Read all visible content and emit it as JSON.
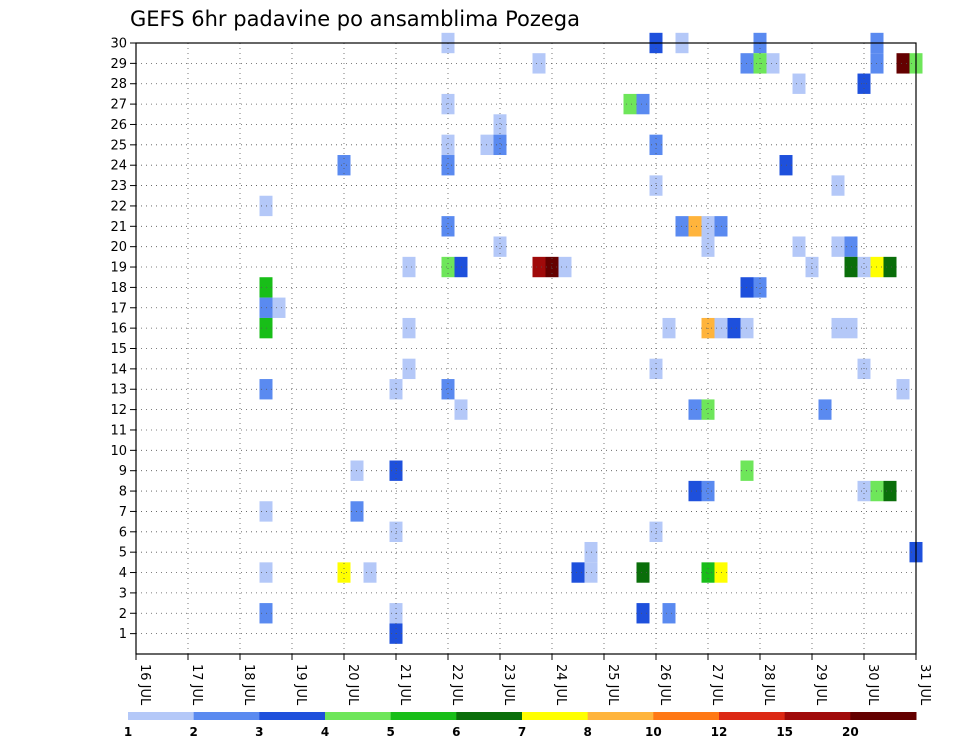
{
  "chart_data": {
    "type": "heatmap",
    "title": "GEFS 6hr padavine po ansamblima Pozega",
    "x_tick_labels": [
      "16 JUL",
      "17 JUL",
      "18 JUL",
      "19 JUL",
      "20 JUL",
      "21 JUL",
      "22 JUL",
      "23 JUL",
      "24 JUL",
      "25 JUL",
      "26 JUL",
      "27 JUL",
      "28 JUL",
      "29 JUL",
      "30 JUL",
      "31 JUL"
    ],
    "x_range_days": [
      16,
      31
    ],
    "y_tick_labels": [
      "1",
      "2",
      "3",
      "4",
      "5",
      "6",
      "7",
      "8",
      "9",
      "10",
      "11",
      "12",
      "13",
      "14",
      "15",
      "16",
      "17",
      "18",
      "19",
      "20",
      "21",
      "22",
      "23",
      "24",
      "25",
      "26",
      "27",
      "28",
      "29",
      "30"
    ],
    "y_range": [
      0,
      30
    ],
    "grid": true,
    "legend_placement": "bottom",
    "legend": {
      "colors": [
        "#b4c8f8",
        "#5a8af0",
        "#1e50dc",
        "#6ee65a",
        "#18be18",
        "#0a6e0a",
        "#ffff00",
        "#ffb43c",
        "#ff7814",
        "#dc2814",
        "#a00a0a",
        "#640000"
      ],
      "labels": [
        "1",
        "2",
        "3",
        "4",
        "5",
        "6",
        "7",
        "8",
        "10",
        "12",
        "15",
        "20"
      ]
    },
    "cells": [
      {
        "m": 30,
        "t": 22.0,
        "c": 1
      },
      {
        "m": 30,
        "t": 26.0,
        "c": 3
      },
      {
        "m": 30,
        "t": 26.5,
        "c": 1
      },
      {
        "m": 30,
        "t": 28.0,
        "c": 2
      },
      {
        "m": 30,
        "t": 30.25,
        "c": 2
      },
      {
        "m": 29,
        "t": 23.75,
        "c": 1
      },
      {
        "m": 29,
        "t": 27.75,
        "c": 2
      },
      {
        "m": 29,
        "t": 28.0,
        "c": 4
      },
      {
        "m": 29,
        "t": 28.25,
        "c": 1
      },
      {
        "m": 29,
        "t": 30.25,
        "c": 2
      },
      {
        "m": 29,
        "t": 30.75,
        "c": 12
      },
      {
        "m": 29,
        "t": 31.0,
        "c": 4
      },
      {
        "m": 28,
        "t": 28.75,
        "c": 1
      },
      {
        "m": 28,
        "t": 30.0,
        "c": 3
      },
      {
        "m": 27,
        "t": 22.0,
        "c": 1
      },
      {
        "m": 27,
        "t": 25.5,
        "c": 4
      },
      {
        "m": 27,
        "t": 25.75,
        "c": 2
      },
      {
        "m": 26,
        "t": 23.0,
        "c": 1
      },
      {
        "m": 25,
        "t": 22.0,
        "c": 1
      },
      {
        "m": 25,
        "t": 22.75,
        "c": 1
      },
      {
        "m": 25,
        "t": 23.0,
        "c": 2
      },
      {
        "m": 25,
        "t": 26.0,
        "c": 2
      },
      {
        "m": 24,
        "t": 20.0,
        "c": 2
      },
      {
        "m": 24,
        "t": 22.0,
        "c": 2
      },
      {
        "m": 24,
        "t": 28.5,
        "c": 3
      },
      {
        "m": 23,
        "t": 26.0,
        "c": 1
      },
      {
        "m": 23,
        "t": 29.5,
        "c": 1
      },
      {
        "m": 22,
        "t": 18.5,
        "c": 1
      },
      {
        "m": 21,
        "t": 22.0,
        "c": 2
      },
      {
        "m": 21,
        "t": 26.5,
        "c": 2
      },
      {
        "m": 21,
        "t": 26.75,
        "c": 8
      },
      {
        "m": 21,
        "t": 27.0,
        "c": 1
      },
      {
        "m": 21,
        "t": 27.25,
        "c": 2
      },
      {
        "m": 20,
        "t": 23.0,
        "c": 1
      },
      {
        "m": 20,
        "t": 27.0,
        "c": 1
      },
      {
        "m": 20,
        "t": 28.75,
        "c": 1
      },
      {
        "m": 20,
        "t": 29.5,
        "c": 1
      },
      {
        "m": 20,
        "t": 29.75,
        "c": 2
      },
      {
        "m": 19,
        "t": 21.25,
        "c": 1
      },
      {
        "m": 19,
        "t": 22.0,
        "c": 4
      },
      {
        "m": 19,
        "t": 22.25,
        "c": 3
      },
      {
        "m": 19,
        "t": 23.75,
        "c": 11
      },
      {
        "m": 19,
        "t": 24.0,
        "c": 12
      },
      {
        "m": 19,
        "t": 24.25,
        "c": 1
      },
      {
        "m": 19,
        "t": 29.0,
        "c": 1
      },
      {
        "m": 19,
        "t": 29.75,
        "c": 6
      },
      {
        "m": 19,
        "t": 30.0,
        "c": 1
      },
      {
        "m": 19,
        "t": 30.25,
        "c": 7
      },
      {
        "m": 19,
        "t": 30.5,
        "c": 6
      },
      {
        "m": 18,
        "t": 18.5,
        "c": 5
      },
      {
        "m": 18,
        "t": 27.75,
        "c": 3
      },
      {
        "m": 18,
        "t": 28.0,
        "c": 2
      },
      {
        "m": 17,
        "t": 18.5,
        "c": 2
      },
      {
        "m": 17,
        "t": 18.75,
        "c": 1
      },
      {
        "m": 16,
        "t": 18.5,
        "c": 5
      },
      {
        "m": 16,
        "t": 21.25,
        "c": 1
      },
      {
        "m": 16,
        "t": 26.25,
        "c": 1
      },
      {
        "m": 16,
        "t": 27.0,
        "c": 8
      },
      {
        "m": 16,
        "t": 27.25,
        "c": 1
      },
      {
        "m": 16,
        "t": 27.5,
        "c": 3
      },
      {
        "m": 16,
        "t": 27.75,
        "c": 1
      },
      {
        "m": 16,
        "t": 29.5,
        "c": 1
      },
      {
        "m": 16,
        "t": 29.75,
        "c": 1
      },
      {
        "m": 14,
        "t": 21.25,
        "c": 1
      },
      {
        "m": 14,
        "t": 26.0,
        "c": 1
      },
      {
        "m": 14,
        "t": 30.0,
        "c": 1
      },
      {
        "m": 13,
        "t": 18.5,
        "c": 2
      },
      {
        "m": 13,
        "t": 21.0,
        "c": 1
      },
      {
        "m": 13,
        "t": 22.0,
        "c": 2
      },
      {
        "m": 13,
        "t": 30.75,
        "c": 1
      },
      {
        "m": 12,
        "t": 22.25,
        "c": 1
      },
      {
        "m": 12,
        "t": 26.75,
        "c": 2
      },
      {
        "m": 12,
        "t": 27.0,
        "c": 4
      },
      {
        "m": 12,
        "t": 29.25,
        "c": 2
      },
      {
        "m": 9,
        "t": 20.25,
        "c": 1
      },
      {
        "m": 9,
        "t": 21.0,
        "c": 3
      },
      {
        "m": 9,
        "t": 27.75,
        "c": 4
      },
      {
        "m": 8,
        "t": 26.75,
        "c": 3
      },
      {
        "m": 8,
        "t": 27.0,
        "c": 2
      },
      {
        "m": 8,
        "t": 30.0,
        "c": 1
      },
      {
        "m": 8,
        "t": 30.25,
        "c": 4
      },
      {
        "m": 8,
        "t": 30.5,
        "c": 6
      },
      {
        "m": 7,
        "t": 18.5,
        "c": 1
      },
      {
        "m": 7,
        "t": 20.25,
        "c": 2
      },
      {
        "m": 6,
        "t": 21.0,
        "c": 1
      },
      {
        "m": 6,
        "t": 26.0,
        "c": 1
      },
      {
        "m": 5,
        "t": 24.75,
        "c": 1
      },
      {
        "m": 5,
        "t": 31.0,
        "c": 3
      },
      {
        "m": 4,
        "t": 18.5,
        "c": 1
      },
      {
        "m": 4,
        "t": 20.0,
        "c": 7
      },
      {
        "m": 4,
        "t": 20.5,
        "c": 1
      },
      {
        "m": 4,
        "t": 24.5,
        "c": 3
      },
      {
        "m": 4,
        "t": 24.75,
        "c": 1
      },
      {
        "m": 4,
        "t": 25.75,
        "c": 6
      },
      {
        "m": 4,
        "t": 27.0,
        "c": 5
      },
      {
        "m": 4,
        "t": 27.25,
        "c": 7
      },
      {
        "m": 2,
        "t": 18.5,
        "c": 2
      },
      {
        "m": 2,
        "t": 21.0,
        "c": 1
      },
      {
        "m": 2,
        "t": 25.75,
        "c": 3
      },
      {
        "m": 2,
        "t": 26.25,
        "c": 2
      },
      {
        "m": 1,
        "t": 21.0,
        "c": 3
      }
    ]
  }
}
